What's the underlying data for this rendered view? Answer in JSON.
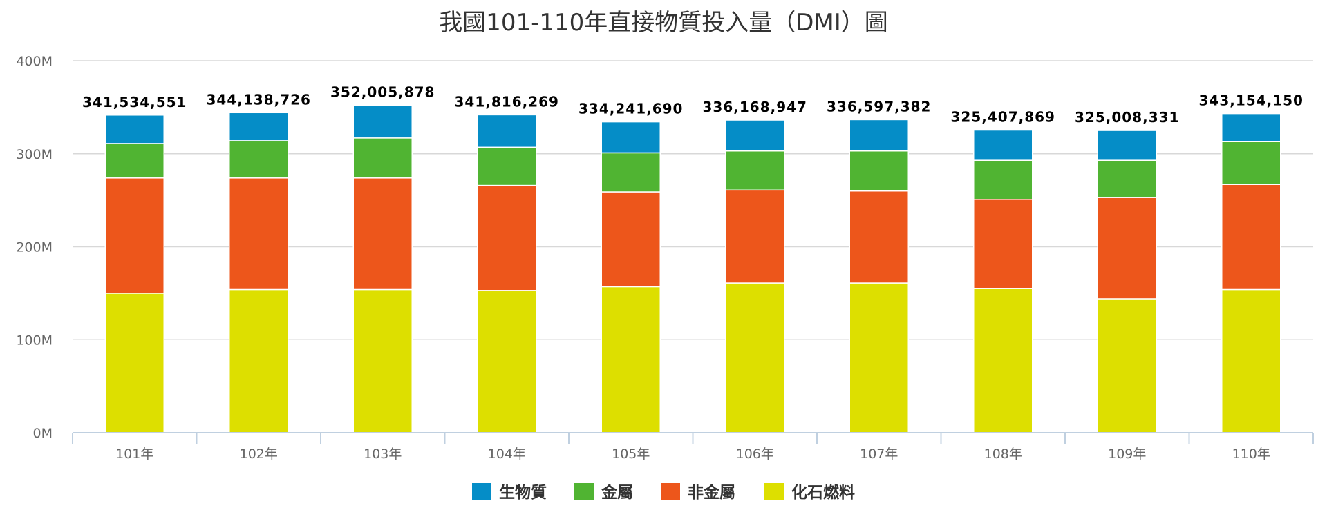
{
  "chart_data": {
    "type": "bar",
    "stacked": true,
    "title": "我國101-110年直接物質投入量（DMI）圖",
    "categories": [
      "101年",
      "102年",
      "103年",
      "104年",
      "105年",
      "106年",
      "107年",
      "108年",
      "109年",
      "110年"
    ],
    "series": [
      {
        "name": "化石燃料",
        "color": "#dddf00",
        "values": [
          150000000,
          154000000,
          154000000,
          153000000,
          157000000,
          161000000,
          161000000,
          155000000,
          144000000,
          154000000
        ]
      },
      {
        "name": "非金屬",
        "color": "#ed561b",
        "values": [
          124000000,
          120000000,
          120000000,
          113000000,
          102000000,
          100000000,
          99000000,
          96000000,
          109000000,
          113000000
        ]
      },
      {
        "name": "金屬",
        "color": "#50b432",
        "values": [
          37000000,
          40000000,
          43000000,
          41000000,
          42000000,
          42000000,
          43000000,
          42000000,
          40000000,
          46000000
        ]
      },
      {
        "name": "生物質",
        "color": "#058dc7",
        "values": [
          30534551,
          30138726,
          35005878,
          34816269,
          33241690,
          33168947,
          33597382,
          32407869,
          32008331,
          30154150
        ]
      }
    ],
    "totals": [
      341534551,
      344138726,
      352005878,
      341816269,
      334241690,
      336168947,
      336597382,
      325407869,
      325008331,
      343154150
    ],
    "total_labels": [
      "341,534,551",
      "344,138,726",
      "352,005,878",
      "341,816,269",
      "334,241,690",
      "336,168,947",
      "336,597,382",
      "325,407,869",
      "325,008,331",
      "343,154,150"
    ],
    "y_ticks": [
      0,
      100000000,
      200000000,
      300000000,
      400000000
    ],
    "y_tick_labels": [
      "0M",
      "100M",
      "200M",
      "300M",
      "400M"
    ],
    "ylim": [
      0,
      400000000
    ],
    "legend_order": [
      "生物質",
      "金屬",
      "非金屬",
      "化石燃料"
    ],
    "legend_position": "bottom-center",
    "grid": true
  }
}
